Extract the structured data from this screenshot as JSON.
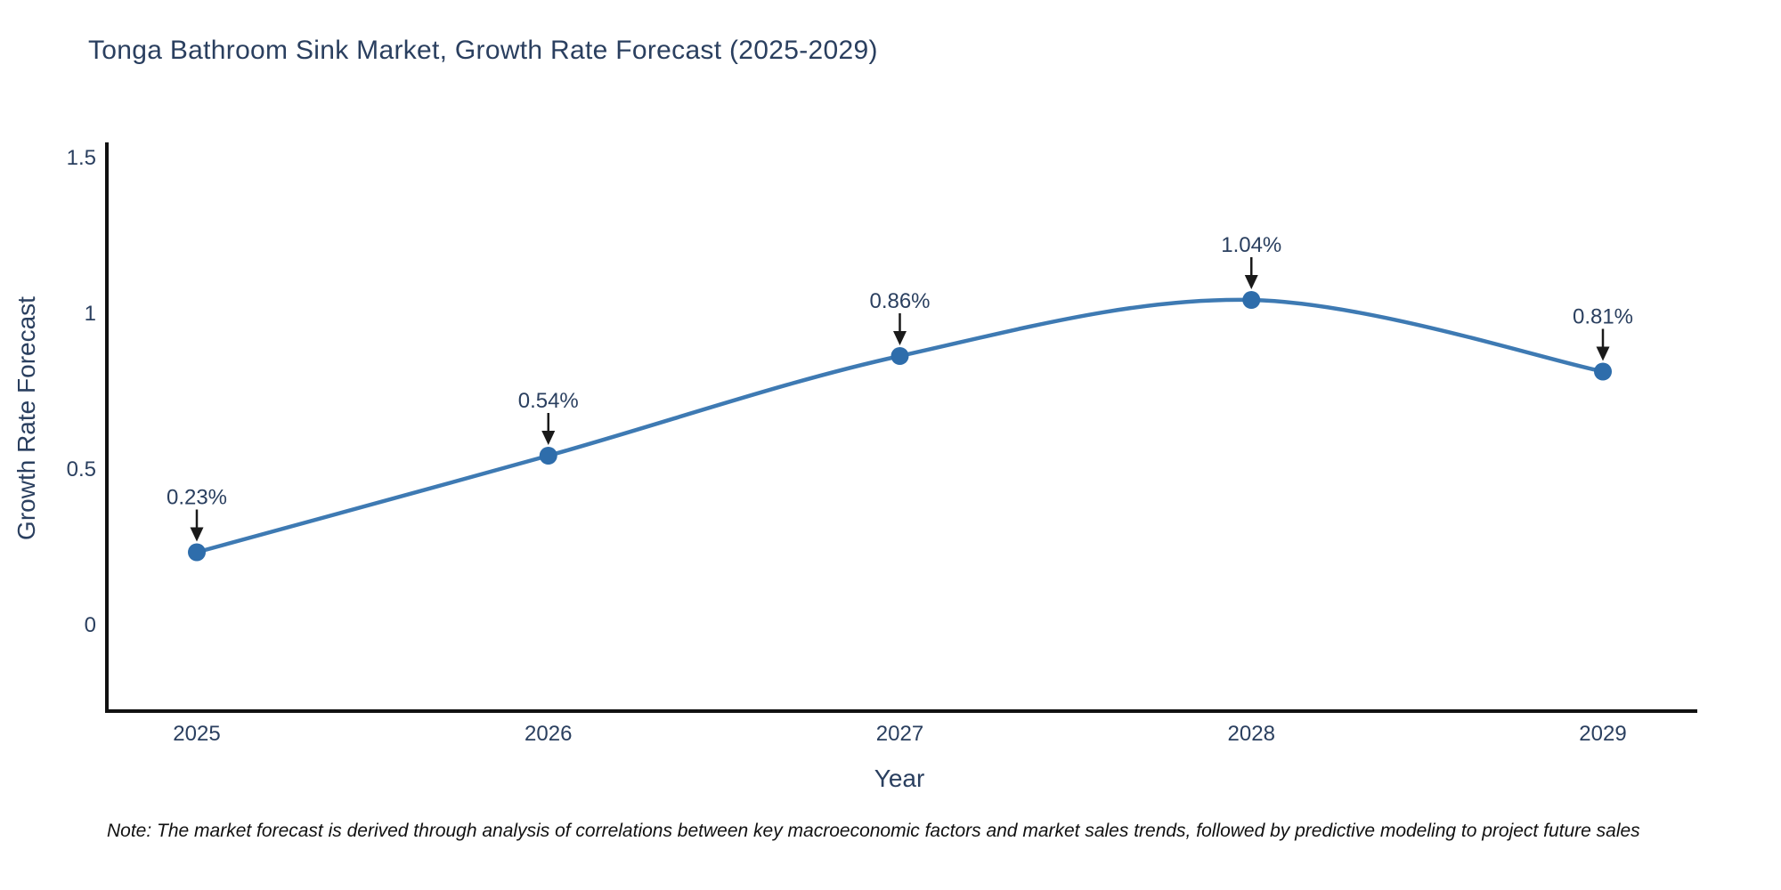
{
  "title": "Tonga Bathroom Sink Market, Growth Rate Forecast (2025-2029)",
  "note": "Note: The market forecast is derived through analysis of correlations between key macroeconomic factors and market sales trends, followed by predictive modeling to project future sales",
  "chart_data": {
    "type": "line",
    "title": "Tonga Bathroom Sink Market, Growth Rate Forecast (2025-2029)",
    "xlabel": "Year",
    "ylabel": "Growth Rate Forecast",
    "x": [
      "2025",
      "2026",
      "2027",
      "2028",
      "2029"
    ],
    "series": [
      {
        "name": "Growth Rate Forecast",
        "values": [
          0.23,
          0.54,
          0.86,
          1.04,
          0.81
        ],
        "point_labels": [
          "0.23%",
          "0.54%",
          "0.86%",
          "1.04%",
          "0.81%"
        ]
      }
    ],
    "y_ticks": [
      0,
      0.5,
      1,
      1.5
    ],
    "ylim": [
      -0.28,
      1.55
    ],
    "line_shape": "spline",
    "grid": false,
    "legend_position": "none",
    "colors": {
      "line": "#3e7ab3",
      "marker": "#2e6dab",
      "axis": "#111111",
      "text": "#2a3f5f",
      "arrow": "#1a1a1a",
      "note_text": "#111111",
      "background": "#ffffff"
    }
  }
}
